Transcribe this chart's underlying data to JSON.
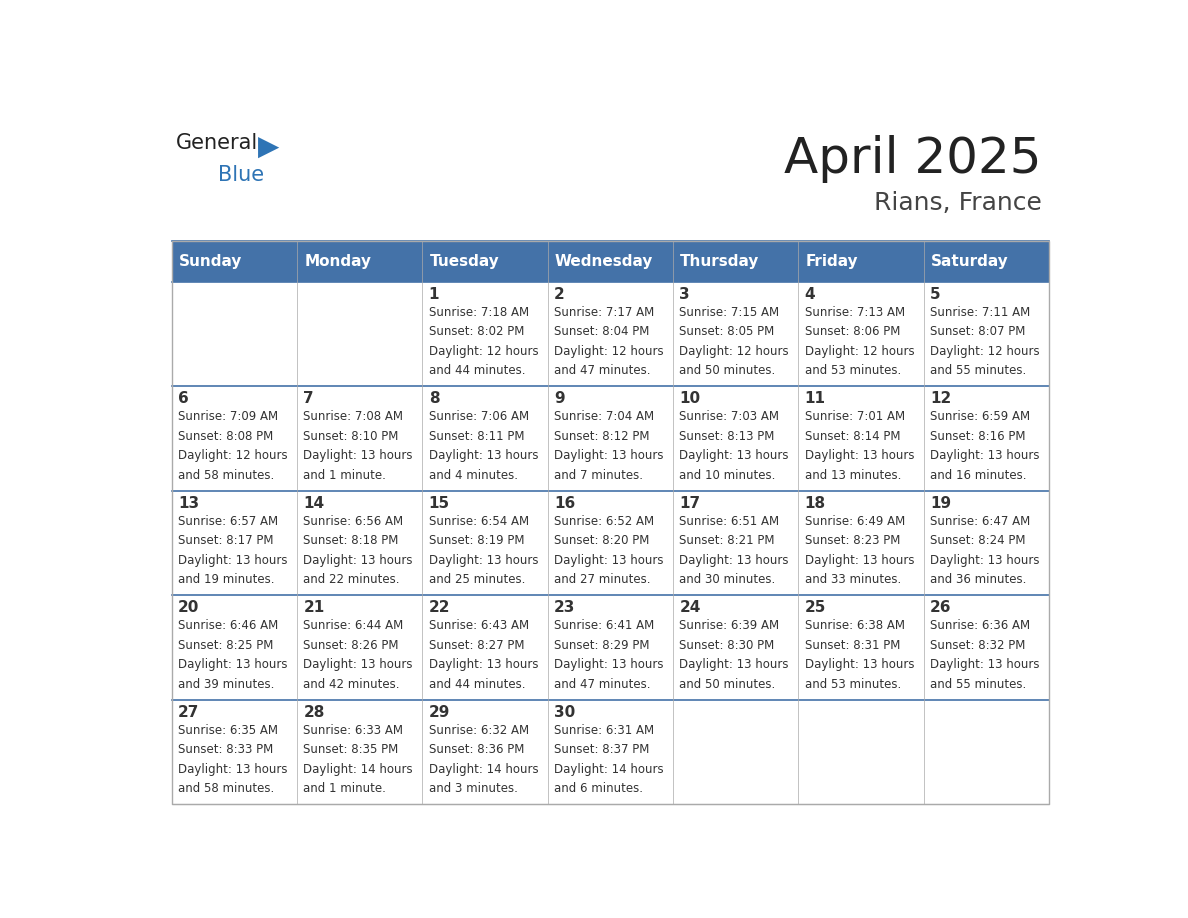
{
  "title": "April 2025",
  "subtitle": "Rians, France",
  "header_color": "#4472A8",
  "header_text_color": "#FFFFFF",
  "day_names": [
    "Sunday",
    "Monday",
    "Tuesday",
    "Wednesday",
    "Thursday",
    "Friday",
    "Saturday"
  ],
  "bg_color": "#FFFFFF",
  "border_color": "#4472A8",
  "cell_text_color": "#333333",
  "date_color": "#333333",
  "days": [
    {
      "date": 1,
      "col": 2,
      "row": 0,
      "sunrise": "7:18 AM",
      "sunset": "8:02 PM",
      "daylight": "12 hours and 44 minutes."
    },
    {
      "date": 2,
      "col": 3,
      "row": 0,
      "sunrise": "7:17 AM",
      "sunset": "8:04 PM",
      "daylight": "12 hours and 47 minutes."
    },
    {
      "date": 3,
      "col": 4,
      "row": 0,
      "sunrise": "7:15 AM",
      "sunset": "8:05 PM",
      "daylight": "12 hours and 50 minutes."
    },
    {
      "date": 4,
      "col": 5,
      "row": 0,
      "sunrise": "7:13 AM",
      "sunset": "8:06 PM",
      "daylight": "12 hours and 53 minutes."
    },
    {
      "date": 5,
      "col": 6,
      "row": 0,
      "sunrise": "7:11 AM",
      "sunset": "8:07 PM",
      "daylight": "12 hours and 55 minutes."
    },
    {
      "date": 6,
      "col": 0,
      "row": 1,
      "sunrise": "7:09 AM",
      "sunset": "8:08 PM",
      "daylight": "12 hours and 58 minutes."
    },
    {
      "date": 7,
      "col": 1,
      "row": 1,
      "sunrise": "7:08 AM",
      "sunset": "8:10 PM",
      "daylight": "13 hours and 1 minute."
    },
    {
      "date": 8,
      "col": 2,
      "row": 1,
      "sunrise": "7:06 AM",
      "sunset": "8:11 PM",
      "daylight": "13 hours and 4 minutes."
    },
    {
      "date": 9,
      "col": 3,
      "row": 1,
      "sunrise": "7:04 AM",
      "sunset": "8:12 PM",
      "daylight": "13 hours and 7 minutes."
    },
    {
      "date": 10,
      "col": 4,
      "row": 1,
      "sunrise": "7:03 AM",
      "sunset": "8:13 PM",
      "daylight": "13 hours and 10 minutes."
    },
    {
      "date": 11,
      "col": 5,
      "row": 1,
      "sunrise": "7:01 AM",
      "sunset": "8:14 PM",
      "daylight": "13 hours and 13 minutes."
    },
    {
      "date": 12,
      "col": 6,
      "row": 1,
      "sunrise": "6:59 AM",
      "sunset": "8:16 PM",
      "daylight": "13 hours and 16 minutes."
    },
    {
      "date": 13,
      "col": 0,
      "row": 2,
      "sunrise": "6:57 AM",
      "sunset": "8:17 PM",
      "daylight": "13 hours and 19 minutes."
    },
    {
      "date": 14,
      "col": 1,
      "row": 2,
      "sunrise": "6:56 AM",
      "sunset": "8:18 PM",
      "daylight": "13 hours and 22 minutes."
    },
    {
      "date": 15,
      "col": 2,
      "row": 2,
      "sunrise": "6:54 AM",
      "sunset": "8:19 PM",
      "daylight": "13 hours and 25 minutes."
    },
    {
      "date": 16,
      "col": 3,
      "row": 2,
      "sunrise": "6:52 AM",
      "sunset": "8:20 PM",
      "daylight": "13 hours and 27 minutes."
    },
    {
      "date": 17,
      "col": 4,
      "row": 2,
      "sunrise": "6:51 AM",
      "sunset": "8:21 PM",
      "daylight": "13 hours and 30 minutes."
    },
    {
      "date": 18,
      "col": 5,
      "row": 2,
      "sunrise": "6:49 AM",
      "sunset": "8:23 PM",
      "daylight": "13 hours and 33 minutes."
    },
    {
      "date": 19,
      "col": 6,
      "row": 2,
      "sunrise": "6:47 AM",
      "sunset": "8:24 PM",
      "daylight": "13 hours and 36 minutes."
    },
    {
      "date": 20,
      "col": 0,
      "row": 3,
      "sunrise": "6:46 AM",
      "sunset": "8:25 PM",
      "daylight": "13 hours and 39 minutes."
    },
    {
      "date": 21,
      "col": 1,
      "row": 3,
      "sunrise": "6:44 AM",
      "sunset": "8:26 PM",
      "daylight": "13 hours and 42 minutes."
    },
    {
      "date": 22,
      "col": 2,
      "row": 3,
      "sunrise": "6:43 AM",
      "sunset": "8:27 PM",
      "daylight": "13 hours and 44 minutes."
    },
    {
      "date": 23,
      "col": 3,
      "row": 3,
      "sunrise": "6:41 AM",
      "sunset": "8:29 PM",
      "daylight": "13 hours and 47 minutes."
    },
    {
      "date": 24,
      "col": 4,
      "row": 3,
      "sunrise": "6:39 AM",
      "sunset": "8:30 PM",
      "daylight": "13 hours and 50 minutes."
    },
    {
      "date": 25,
      "col": 5,
      "row": 3,
      "sunrise": "6:38 AM",
      "sunset": "8:31 PM",
      "daylight": "13 hours and 53 minutes."
    },
    {
      "date": 26,
      "col": 6,
      "row": 3,
      "sunrise": "6:36 AM",
      "sunset": "8:32 PM",
      "daylight": "13 hours and 55 minutes."
    },
    {
      "date": 27,
      "col": 0,
      "row": 4,
      "sunrise": "6:35 AM",
      "sunset": "8:33 PM",
      "daylight": "13 hours and 58 minutes."
    },
    {
      "date": 28,
      "col": 1,
      "row": 4,
      "sunrise": "6:33 AM",
      "sunset": "8:35 PM",
      "daylight": "14 hours and 1 minute."
    },
    {
      "date": 29,
      "col": 2,
      "row": 4,
      "sunrise": "6:32 AM",
      "sunset": "8:36 PM",
      "daylight": "14 hours and 3 minutes."
    },
    {
      "date": 30,
      "col": 3,
      "row": 4,
      "sunrise": "6:31 AM",
      "sunset": "8:37 PM",
      "daylight": "14 hours and 6 minutes."
    }
  ]
}
